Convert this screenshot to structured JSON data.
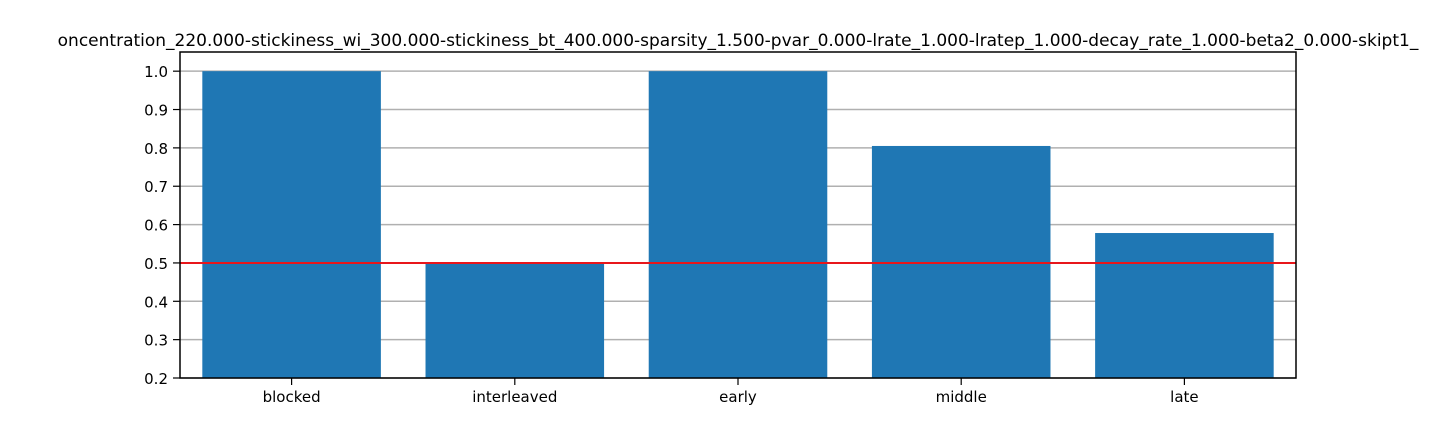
{
  "chart_data": {
    "type": "bar",
    "title": "oncentration_220.000-stickiness_wi_300.000-stickiness_bt_400.000-sparsity_1.500-pvar_0.000-lrate_1.000-lratep_1.000-decay_rate_1.000-beta2_0.000-skipt1_",
    "xlabel": "",
    "ylabel": "",
    "categories": [
      "blocked",
      "interleaved",
      "early",
      "middle",
      "late"
    ],
    "values": [
      1.0,
      0.5,
      1.0,
      0.805,
      0.578
    ],
    "ylim": [
      0.2,
      1.05
    ],
    "yticks": [
      "0.2",
      "0.3",
      "0.4",
      "0.5",
      "0.6",
      "0.7",
      "0.8",
      "0.9",
      "1.0"
    ],
    "reference_line": 0.5,
    "grid": "horizontal",
    "legend": "none",
    "colors": {
      "bar": "#1f77b4",
      "reference_line": "#e8161b",
      "grid": "#b0b0b0",
      "axis": "#000000"
    }
  }
}
